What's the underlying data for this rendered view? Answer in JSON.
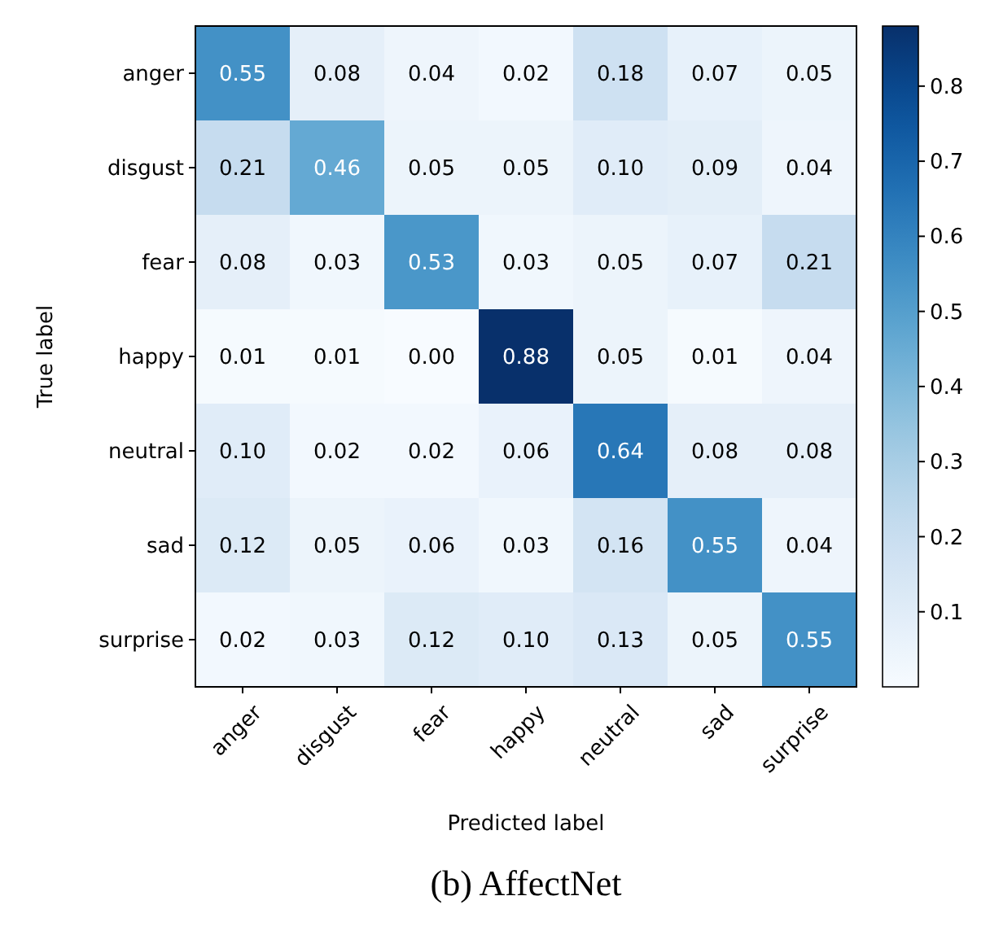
{
  "chart_data": {
    "type": "heatmap",
    "title": "(b) AffectNet",
    "xlabel": "Predicted label",
    "ylabel": "True label",
    "categories": [
      "anger",
      "disgust",
      "fear",
      "happy",
      "neutral",
      "sad",
      "surprise"
    ],
    "y_categories": [
      "anger",
      "disgust",
      "fear",
      "happy",
      "neutral",
      "sad",
      "surprise"
    ],
    "cells": [
      [
        0.55,
        0.08,
        0.04,
        0.02,
        0.18,
        0.07,
        0.05
      ],
      [
        0.21,
        0.46,
        0.05,
        0.05,
        0.1,
        0.09,
        0.04
      ],
      [
        0.08,
        0.03,
        0.53,
        0.03,
        0.05,
        0.07,
        0.21
      ],
      [
        0.01,
        0.01,
        0.0,
        0.88,
        0.05,
        0.01,
        0.04
      ],
      [
        0.1,
        0.02,
        0.02,
        0.06,
        0.64,
        0.08,
        0.08
      ],
      [
        0.12,
        0.05,
        0.06,
        0.03,
        0.16,
        0.55,
        0.04
      ],
      [
        0.02,
        0.03,
        0.12,
        0.1,
        0.13,
        0.05,
        0.55
      ]
    ],
    "cell_labels": [
      [
        "0.55",
        "0.08",
        "0.04",
        "0.02",
        "0.18",
        "0.07",
        "0.05"
      ],
      [
        "0.21",
        "0.46",
        "0.05",
        "0.05",
        "0.10",
        "0.09",
        "0.04"
      ],
      [
        "0.08",
        "0.03",
        "0.53",
        "0.03",
        "0.05",
        "0.07",
        "0.21"
      ],
      [
        "0.01",
        "0.01",
        "0.00",
        "0.88",
        "0.05",
        "0.01",
        "0.04"
      ],
      [
        "0.10",
        "0.02",
        "0.02",
        "0.06",
        "0.64",
        "0.08",
        "0.08"
      ],
      [
        "0.12",
        "0.05",
        "0.06",
        "0.03",
        "0.16",
        "0.55",
        "0.04"
      ],
      [
        "0.02",
        "0.03",
        "0.12",
        "0.10",
        "0.13",
        "0.05",
        "0.55"
      ]
    ],
    "clim": [
      0,
      0.88
    ],
    "cticks": [
      0.1,
      0.2,
      0.3,
      0.4,
      0.5,
      0.6,
      0.7,
      0.8
    ]
  }
}
